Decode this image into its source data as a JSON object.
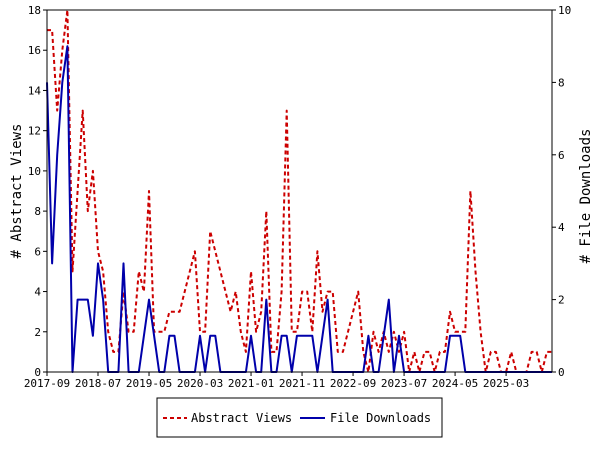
{
  "chart_data": {
    "type": "line",
    "y_left_label": "# Abstract Views",
    "y_right_label": "# File Downloads",
    "y_left_range": [
      0,
      18
    ],
    "y_right_range": [
      0,
      10
    ],
    "y_left_ticks": [
      "0",
      "2",
      "4",
      "6",
      "8",
      "10",
      "12",
      "14",
      "16",
      "18"
    ],
    "y_right_ticks": [
      "0",
      "2",
      "4",
      "6",
      "8",
      "10"
    ],
    "x_range": [
      "2017-09",
      "2025-12"
    ],
    "x_ticks": [
      "2017-09",
      "2018-07",
      "2019-05",
      "2020-03",
      "2021-01",
      "2021-11",
      "2022-09",
      "2023-07",
      "2024-05",
      "2025-03"
    ],
    "grid": false,
    "legend_position": "bottom-center",
    "series": [
      {
        "name": "Abstract Views",
        "axis": "left",
        "color": "#cc0000",
        "style": "dashed",
        "points": [
          [
            "2017-09",
            17
          ],
          [
            "2017-10",
            17
          ],
          [
            "2017-11",
            13
          ],
          [
            "2017-12",
            16
          ],
          [
            "2018-01",
            18
          ],
          [
            "2018-02",
            5
          ],
          [
            "2018-03",
            9
          ],
          [
            "2018-04",
            13
          ],
          [
            "2018-05",
            8
          ],
          [
            "2018-06",
            10
          ],
          [
            "2018-07",
            6
          ],
          [
            "2018-08",
            5
          ],
          [
            "2018-09",
            2
          ],
          [
            "2018-10",
            1
          ],
          [
            "2018-11",
            1
          ],
          [
            "2018-12",
            4
          ],
          [
            "2019-01",
            2
          ],
          [
            "2019-02",
            2
          ],
          [
            "2019-03",
            5
          ],
          [
            "2019-04",
            4
          ],
          [
            "2019-05",
            9
          ],
          [
            "2019-06",
            2
          ],
          [
            "2019-07",
            2
          ],
          [
            "2019-08",
            2
          ],
          [
            "2019-09",
            3
          ],
          [
            "2019-10",
            3
          ],
          [
            "2019-11",
            3
          ],
          [
            "2019-12",
            4
          ],
          [
            "2020-01",
            5
          ],
          [
            "2020-02",
            6
          ],
          [
            "2020-03",
            2
          ],
          [
            "2020-04",
            2
          ],
          [
            "2020-05",
            7
          ],
          [
            "2020-06",
            6
          ],
          [
            "2020-07",
            5
          ],
          [
            "2020-08",
            4
          ],
          [
            "2020-09",
            3
          ],
          [
            "2020-10",
            4
          ],
          [
            "2020-11",
            2
          ],
          [
            "2020-12",
            1
          ],
          [
            "2021-01",
            5
          ],
          [
            "2021-02",
            2
          ],
          [
            "2021-03",
            3
          ],
          [
            "2021-04",
            8
          ],
          [
            "2021-05",
            1
          ],
          [
            "2021-06",
            1
          ],
          [
            "2021-07",
            4
          ],
          [
            "2021-08",
            13
          ],
          [
            "2021-09",
            2
          ],
          [
            "2021-10",
            2
          ],
          [
            "2021-11",
            4
          ],
          [
            "2021-12",
            4
          ],
          [
            "2022-01",
            2
          ],
          [
            "2022-02",
            6
          ],
          [
            "2022-03",
            3
          ],
          [
            "2022-04",
            4
          ],
          [
            "2022-05",
            4
          ],
          [
            "2022-06",
            1
          ],
          [
            "2022-07",
            1
          ],
          [
            "2022-08",
            2
          ],
          [
            "2022-09",
            3
          ],
          [
            "2022-10",
            4
          ],
          [
            "2022-11",
            1
          ],
          [
            "2022-12",
            0
          ],
          [
            "2023-01",
            2
          ],
          [
            "2023-02",
            1
          ],
          [
            "2023-03",
            2
          ],
          [
            "2023-04",
            1
          ],
          [
            "2023-05",
            2
          ],
          [
            "2023-06",
            1
          ],
          [
            "2023-07",
            2
          ],
          [
            "2023-08",
            0
          ],
          [
            "2023-09",
            1
          ],
          [
            "2023-10",
            0
          ],
          [
            "2023-11",
            1
          ],
          [
            "2023-12",
            1
          ],
          [
            "2024-01",
            0
          ],
          [
            "2024-02",
            1
          ],
          [
            "2024-03",
            1
          ],
          [
            "2024-04",
            3
          ],
          [
            "2024-05",
            2
          ],
          [
            "2024-06",
            2
          ],
          [
            "2024-07",
            2
          ],
          [
            "2024-08",
            9
          ],
          [
            "2024-09",
            5
          ],
          [
            "2024-10",
            2
          ],
          [
            "2024-11",
            0
          ],
          [
            "2024-12",
            1
          ],
          [
            "2025-01",
            1
          ],
          [
            "2025-02",
            0
          ],
          [
            "2025-03",
            0
          ],
          [
            "2025-04",
            1
          ],
          [
            "2025-05",
            0
          ],
          [
            "2025-06",
            0
          ],
          [
            "2025-07",
            0
          ],
          [
            "2025-08",
            1
          ],
          [
            "2025-09",
            1
          ],
          [
            "2025-10",
            0
          ],
          [
            "2025-11",
            1
          ],
          [
            "2025-12",
            1
          ]
        ]
      },
      {
        "name": "File Downloads",
        "axis": "right",
        "color": "#0000aa",
        "style": "solid",
        "points": [
          [
            "2017-09",
            8
          ],
          [
            "2017-10",
            3
          ],
          [
            "2017-11",
            6
          ],
          [
            "2017-12",
            8
          ],
          [
            "2018-01",
            9
          ],
          [
            "2018-02",
            0
          ],
          [
            "2018-03",
            2
          ],
          [
            "2018-04",
            2
          ],
          [
            "2018-05",
            2
          ],
          [
            "2018-06",
            1
          ],
          [
            "2018-07",
            3
          ],
          [
            "2018-08",
            2
          ],
          [
            "2018-09",
            0
          ],
          [
            "2018-10",
            0
          ],
          [
            "2018-11",
            0
          ],
          [
            "2018-12",
            3
          ],
          [
            "2019-01",
            0
          ],
          [
            "2019-02",
            0
          ],
          [
            "2019-03",
            0
          ],
          [
            "2019-04",
            1
          ],
          [
            "2019-05",
            2
          ],
          [
            "2019-06",
            1
          ],
          [
            "2019-07",
            0
          ],
          [
            "2019-08",
            0
          ],
          [
            "2019-09",
            1
          ],
          [
            "2019-10",
            1
          ],
          [
            "2019-11",
            0
          ],
          [
            "2019-12",
            0
          ],
          [
            "2020-01",
            0
          ],
          [
            "2020-02",
            0
          ],
          [
            "2020-03",
            1
          ],
          [
            "2020-04",
            0
          ],
          [
            "2020-05",
            1
          ],
          [
            "2020-06",
            1
          ],
          [
            "2020-07",
            0
          ],
          [
            "2020-08",
            0
          ],
          [
            "2020-09",
            0
          ],
          [
            "2020-10",
            0
          ],
          [
            "2020-11",
            0
          ],
          [
            "2020-12",
            0
          ],
          [
            "2021-01",
            1
          ],
          [
            "2021-02",
            0
          ],
          [
            "2021-03",
            0
          ],
          [
            "2021-04",
            2
          ],
          [
            "2021-05",
            0
          ],
          [
            "2021-06",
            0
          ],
          [
            "2021-07",
            1
          ],
          [
            "2021-08",
            1
          ],
          [
            "2021-09",
            0
          ],
          [
            "2021-10",
            1
          ],
          [
            "2021-11",
            1
          ],
          [
            "2021-12",
            1
          ],
          [
            "2022-01",
            1
          ],
          [
            "2022-02",
            0
          ],
          [
            "2022-03",
            1
          ],
          [
            "2022-04",
            2
          ],
          [
            "2022-05",
            0
          ],
          [
            "2022-06",
            0
          ],
          [
            "2022-07",
            0
          ],
          [
            "2022-08",
            0
          ],
          [
            "2022-09",
            0
          ],
          [
            "2022-10",
            0
          ],
          [
            "2022-11",
            0
          ],
          [
            "2022-12",
            1
          ],
          [
            "2023-01",
            0
          ],
          [
            "2023-02",
            0
          ],
          [
            "2023-03",
            1
          ],
          [
            "2023-04",
            2
          ],
          [
            "2023-05",
            0
          ],
          [
            "2023-06",
            1
          ],
          [
            "2023-07",
            0
          ],
          [
            "2023-08",
            0
          ],
          [
            "2023-09",
            0
          ],
          [
            "2023-10",
            0
          ],
          [
            "2023-11",
            0
          ],
          [
            "2023-12",
            0
          ],
          [
            "2024-01",
            0
          ],
          [
            "2024-02",
            0
          ],
          [
            "2024-03",
            0
          ],
          [
            "2024-04",
            1
          ],
          [
            "2024-05",
            1
          ],
          [
            "2024-06",
            1
          ],
          [
            "2024-07",
            0
          ],
          [
            "2024-08",
            0
          ],
          [
            "2024-09",
            0
          ],
          [
            "2024-10",
            0
          ],
          [
            "2024-11",
            0
          ],
          [
            "2024-12",
            0
          ],
          [
            "2025-01",
            0
          ],
          [
            "2025-02",
            0
          ],
          [
            "2025-03",
            0
          ],
          [
            "2025-04",
            0
          ],
          [
            "2025-05",
            0
          ],
          [
            "2025-06",
            0
          ],
          [
            "2025-07",
            0
          ],
          [
            "2025-08",
            0
          ],
          [
            "2025-09",
            0
          ],
          [
            "2025-10",
            0
          ],
          [
            "2025-11",
            0
          ],
          [
            "2025-12",
            0
          ]
        ]
      }
    ]
  }
}
